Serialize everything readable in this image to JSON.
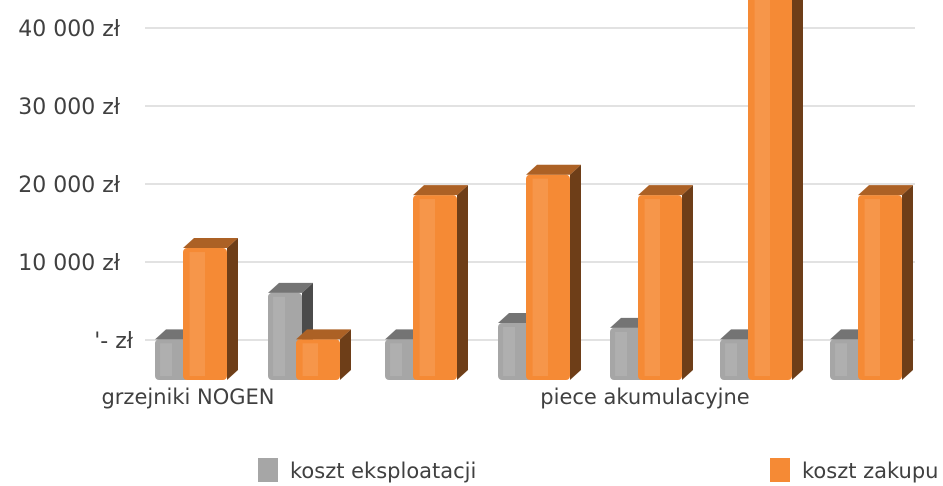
{
  "chart_data": {
    "type": "bar",
    "style": "3d-column",
    "ylim": [
      0,
      40000
    ],
    "grid": true,
    "yticks": [
      {
        "value": 0,
        "label": "'-   zł"
      },
      {
        "value": 10000,
        "label": "10 000 zł"
      },
      {
        "value": 20000,
        "label": "20 000 zł"
      },
      {
        "value": 30000,
        "label": "30 000 zł"
      },
      {
        "value": 40000,
        "label": "40 000 zł"
      }
    ],
    "category_labels": [
      {
        "label": "grzejniki NOGEN",
        "group": 0
      },
      {
        "label": "piece akumulacyjne",
        "group": 4
      }
    ],
    "legend_position": "bottom",
    "series": [
      {
        "name": "koszt eksploatacji",
        "color": "#a6a6a6",
        "values": [
          1800,
          7500,
          1800,
          3800,
          3200,
          1800,
          1800
        ]
      },
      {
        "name": "koszt zakupu",
        "color": "#f58a35",
        "values": [
          13000,
          1800,
          19500,
          22000,
          19500,
          44000,
          19500
        ]
      }
    ]
  }
}
